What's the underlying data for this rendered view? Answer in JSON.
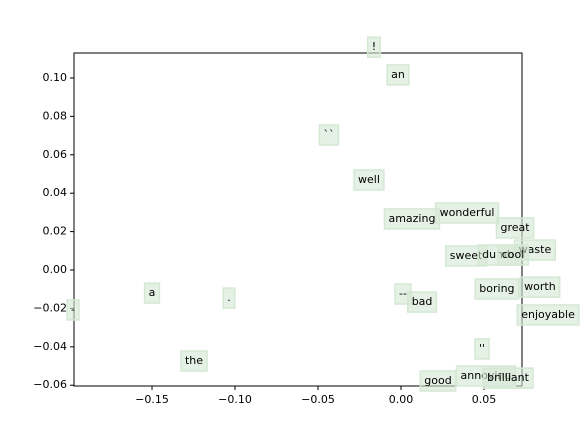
{
  "chart_data": {
    "type": "scatter",
    "labels": [
      "!",
      "an",
      "``",
      "well",
      "amazing",
      "wonderful",
      "great",
      "waste",
      "sweet",
      "dumb",
      "cool",
      "boring",
      "worth",
      "a",
      ".",
      "-",
      "--",
      "bad",
      "enjoyable",
      "''",
      "the",
      "good",
      "annoying",
      "brilliant"
    ],
    "x": [
      -0.0163,
      -0.0018,
      -0.0434,
      -0.0193,
      0.0066,
      0.0398,
      0.0687,
      0.0807,
      0.0392,
      0.0584,
      0.0675,
      0.0578,
      0.0837,
      -0.15,
      -0.1036,
      -0.1976,
      0.0012,
      0.0127,
      0.0886,
      0.0488,
      -0.1247,
      0.0223,
      0.0512,
      0.0645
    ],
    "y": [
      0.116,
      0.1016,
      0.0703,
      0.0469,
      0.0266,
      0.0297,
      0.0219,
      0.0104,
      0.0073,
      0.0078,
      0.0078,
      -0.0099,
      -0.0089,
      -0.012,
      -0.0146,
      -0.0208,
      -0.0125,
      -0.0167,
      -0.0234,
      -0.0411,
      -0.0474,
      -0.0578,
      -0.0552,
      -0.0563
    ],
    "color": "#d5e8d4",
    "xlim": [
      -0.197,
      0.0729
    ],
    "ylim": [
      -0.0604,
      0.113
    ],
    "xticks": [
      {
        "value": -0.15,
        "label": "−0.15"
      },
      {
        "value": -0.1,
        "label": "−0.10"
      },
      {
        "value": -0.05,
        "label": "−0.05"
      },
      {
        "value": 0,
        "label": "0.00"
      },
      {
        "value": 0.05,
        "label": "0.05"
      }
    ],
    "yticks": [
      {
        "value": -0.06,
        "label": "−0.06"
      },
      {
        "value": -0.04,
        "label": "−0.04"
      },
      {
        "value": -0.02,
        "label": "−0.02"
      },
      {
        "value": 0,
        "label": "0.00"
      },
      {
        "value": 0.02,
        "label": "0.02"
      },
      {
        "value": 0.04,
        "label": "0.04"
      },
      {
        "value": 0.06,
        "label": "0.06"
      },
      {
        "value": 0.08,
        "label": "0.08"
      },
      {
        "value": 0.1,
        "label": "0.10"
      }
    ]
  }
}
